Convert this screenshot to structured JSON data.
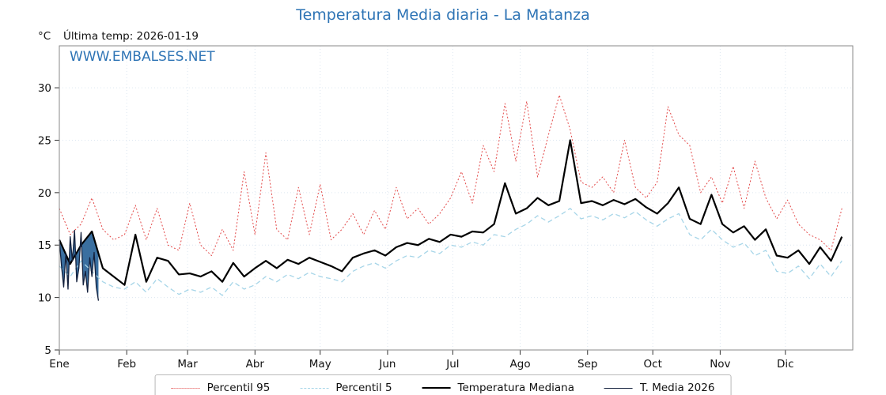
{
  "header": {
    "title": "Temperatura Media diaria - La Matanza",
    "y_unit": "°C",
    "ultima_temp": "Última temp: 2026-01-19",
    "watermark": "WWW.EMBALSES.NET"
  },
  "legend": {
    "items": [
      {
        "label": "Percentil 95",
        "color": "#e34a4a",
        "style": "dotted",
        "width": 1.5
      },
      {
        "label": "Percentil 5",
        "color": "#a6d5e8",
        "style": "dashed",
        "width": 1.5
      },
      {
        "label": "Temperatura Mediana",
        "color": "#000000",
        "style": "solid",
        "width": 2.5
      },
      {
        "label": "T. Media 2026",
        "color": "#14213d",
        "style": "solid",
        "width": 1.5
      }
    ]
  },
  "chart_data": {
    "type": "line",
    "title": "Temperatura Media diaria - La Matanza",
    "xlabel": "",
    "ylabel": "°C",
    "x_range": [
      0,
      365
    ],
    "y_range": [
      5,
      34
    ],
    "y_ticks": [
      5,
      10,
      15,
      20,
      25,
      30
    ],
    "grid": true,
    "legend_position": "bottom",
    "months": [
      {
        "label": "Ene",
        "day": 0
      },
      {
        "label": "Feb",
        "day": 31
      },
      {
        "label": "Mar",
        "day": 59
      },
      {
        "label": "Abr",
        "day": 90
      },
      {
        "label": "May",
        "day": 120
      },
      {
        "label": "Jun",
        "day": 151
      },
      {
        "label": "Jul",
        "day": 181
      },
      {
        "label": "Ago",
        "day": 212
      },
      {
        "label": "Sep",
        "day": 243
      },
      {
        "label": "Oct",
        "day": 273
      },
      {
        "label": "Nov",
        "day": 304
      },
      {
        "label": "Dic",
        "day": 334
      }
    ],
    "days": [
      0,
      5,
      10,
      15,
      20,
      25,
      30,
      35,
      40,
      45,
      50,
      55,
      60,
      65,
      70,
      75,
      80,
      85,
      90,
      95,
      100,
      105,
      110,
      115,
      120,
      125,
      130,
      135,
      140,
      145,
      150,
      155,
      160,
      165,
      170,
      175,
      180,
      185,
      190,
      195,
      200,
      205,
      210,
      215,
      220,
      225,
      230,
      235,
      240,
      245,
      250,
      255,
      260,
      265,
      270,
      275,
      280,
      285,
      290,
      295,
      300,
      305,
      310,
      315,
      320,
      325,
      330,
      335,
      340,
      345,
      350,
      355,
      360
    ],
    "series": [
      {
        "name": "Percentil 95",
        "color": "#e34a4a",
        "dash": "2 2.4",
        "width": 1,
        "values": [
          18.5,
          16.0,
          17.0,
          19.5,
          16.5,
          15.5,
          16.0,
          18.8,
          15.5,
          18.5,
          15.0,
          14.5,
          19.0,
          15.0,
          14.0,
          16.5,
          14.5,
          22.0,
          16.0,
          23.8,
          16.5,
          15.5,
          20.5,
          16.0,
          20.8,
          15.5,
          16.5,
          18.0,
          16.0,
          18.3,
          16.5,
          20.5,
          17.5,
          18.5,
          17.0,
          18.0,
          19.5,
          22.0,
          19.0,
          24.5,
          22.0,
          28.5,
          23.0,
          28.7,
          21.5,
          25.5,
          29.3,
          26.0,
          21.0,
          20.5,
          21.5,
          20.0,
          25.0,
          20.5,
          19.5,
          21.0,
          28.2,
          25.5,
          24.5,
          20.0,
          21.5,
          19.0,
          22.5,
          18.5,
          23.0,
          19.5,
          17.5,
          19.3,
          17.0,
          16.0,
          15.5,
          14.5,
          18.5
        ]
      },
      {
        "name": "Percentil 5",
        "color": "#a6d5e8",
        "dash": "6 4",
        "width": 1.3,
        "values": [
          13.0,
          12.0,
          13.5,
          12.5,
          11.5,
          11.0,
          10.8,
          11.5,
          10.5,
          11.8,
          11.0,
          10.3,
          10.8,
          10.5,
          11.0,
          10.2,
          11.5,
          10.8,
          11.2,
          12.0,
          11.5,
          12.2,
          11.8,
          12.4,
          12.0,
          11.8,
          11.5,
          12.5,
          13.0,
          13.3,
          12.8,
          13.5,
          14.0,
          13.8,
          14.5,
          14.2,
          15.0,
          14.8,
          15.3,
          15.0,
          16.0,
          15.8,
          16.5,
          17.0,
          17.8,
          17.2,
          17.8,
          18.5,
          17.5,
          17.8,
          17.4,
          18.0,
          17.6,
          18.2,
          17.4,
          16.8,
          17.5,
          18.0,
          16.0,
          15.5,
          16.5,
          15.5,
          14.8,
          15.2,
          14.0,
          14.5,
          12.5,
          12.3,
          13.0,
          11.8,
          13.2,
          12.0,
          13.5
        ]
      },
      {
        "name": "Temperatura Mediana",
        "color": "#000000",
        "dash": "",
        "width": 2.2,
        "values": [
          15.5,
          13.2,
          15.0,
          16.3,
          12.8,
          12.0,
          11.2,
          16.0,
          11.5,
          13.8,
          13.5,
          12.2,
          12.3,
          12.0,
          12.5,
          11.5,
          13.3,
          12.0,
          12.8,
          13.5,
          12.8,
          13.6,
          13.2,
          13.8,
          13.4,
          13.0,
          12.5,
          13.8,
          14.2,
          14.5,
          14.0,
          14.8,
          15.2,
          15.0,
          15.6,
          15.3,
          16.0,
          15.8,
          16.3,
          16.2,
          17.0,
          20.9,
          18.0,
          18.5,
          19.5,
          18.8,
          19.2,
          25.0,
          19.0,
          19.2,
          18.8,
          19.3,
          18.9,
          19.4,
          18.6,
          18.0,
          19.0,
          20.5,
          17.5,
          17.0,
          19.8,
          17.0,
          16.2,
          16.8,
          15.5,
          16.5,
          14.0,
          13.8,
          14.5,
          13.2,
          14.8,
          13.5,
          15.8
        ]
      },
      {
        "name": "T. Media 2026",
        "color": "#14213d",
        "dash": "",
        "width": 1.3,
        "fill": "#3a6fa0",
        "fill_to": "Temperatura Mediana",
        "days": [
          0,
          1,
          2,
          3,
          4,
          5,
          6,
          7,
          8,
          9,
          10,
          11,
          12,
          13,
          14,
          15,
          16,
          17,
          18
        ],
        "values": [
          15.5,
          13.0,
          11.0,
          14.2,
          10.8,
          15.8,
          13.5,
          16.4,
          11.5,
          12.8,
          16.2,
          11.2,
          12.5,
          10.5,
          13.8,
          12.0,
          14.3,
          11.0,
          9.7
        ]
      }
    ]
  }
}
